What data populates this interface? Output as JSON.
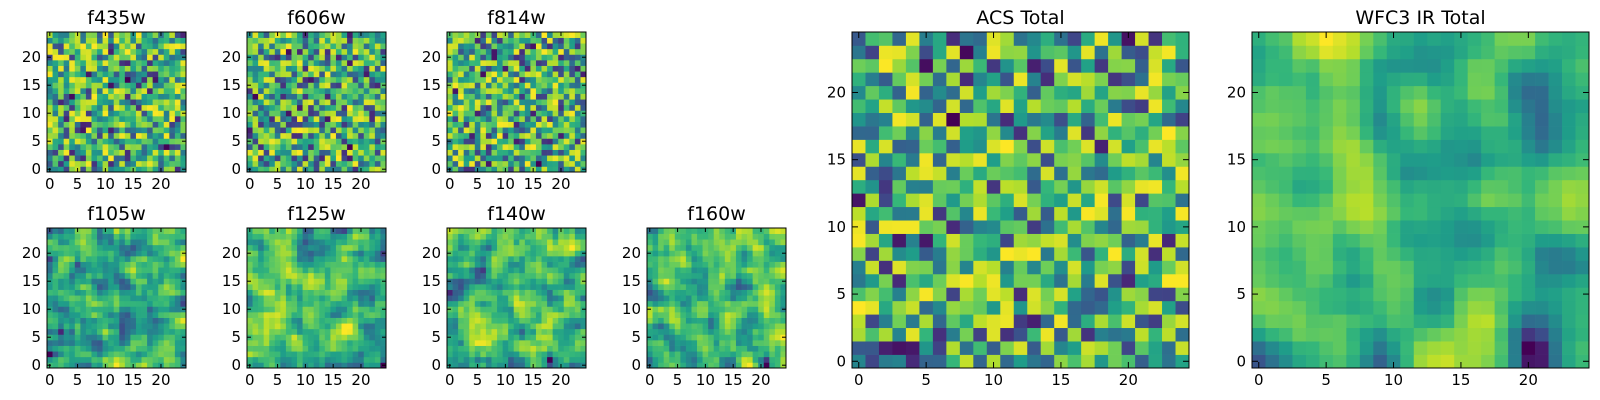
{
  "chart_data": [
    {
      "type": "heatmap",
      "title": "f435w",
      "grid_size": 25,
      "seed": 11,
      "smooth": 0,
      "xticks": [
        "0",
        "5",
        "10",
        "15",
        "20"
      ],
      "yticks": [
        "0",
        "5",
        "10",
        "15",
        "20"
      ],
      "xlim": [
        0,
        25
      ],
      "ylim": [
        0,
        25
      ],
      "colormap": "viridis"
    },
    {
      "type": "heatmap",
      "title": "f606w",
      "grid_size": 25,
      "seed": 23,
      "smooth": 0,
      "xticks": [
        "0",
        "5",
        "10",
        "15",
        "20"
      ],
      "yticks": [
        "0",
        "5",
        "10",
        "15",
        "20"
      ],
      "xlim": [
        0,
        25
      ],
      "ylim": [
        0,
        25
      ],
      "colormap": "viridis"
    },
    {
      "type": "heatmap",
      "title": "f814w",
      "grid_size": 25,
      "seed": 37,
      "smooth": 0,
      "xticks": [
        "0",
        "5",
        "10",
        "15",
        "20"
      ],
      "yticks": [
        "0",
        "5",
        "10",
        "15",
        "20"
      ],
      "xlim": [
        0,
        25
      ],
      "ylim": [
        0,
        25
      ],
      "colormap": "viridis"
    },
    {
      "type": "heatmap",
      "title": "f105w",
      "grid_size": 25,
      "seed": 41,
      "smooth": 1,
      "xticks": [
        "0",
        "5",
        "10",
        "15",
        "20"
      ],
      "yticks": [
        "0",
        "5",
        "10",
        "15",
        "20"
      ],
      "xlim": [
        0,
        25
      ],
      "ylim": [
        0,
        25
      ],
      "colormap": "viridis"
    },
    {
      "type": "heatmap",
      "title": "f125w",
      "grid_size": 25,
      "seed": 53,
      "smooth": 1,
      "xticks": [
        "0",
        "5",
        "10",
        "15",
        "20"
      ],
      "yticks": [
        "0",
        "5",
        "10",
        "15",
        "20"
      ],
      "xlim": [
        0,
        25
      ],
      "ylim": [
        0,
        25
      ],
      "colormap": "viridis"
    },
    {
      "type": "heatmap",
      "title": "f140w",
      "grid_size": 25,
      "seed": 67,
      "smooth": 1,
      "xticks": [
        "0",
        "5",
        "10",
        "15",
        "20"
      ],
      "yticks": [
        "0",
        "5",
        "10",
        "15",
        "20"
      ],
      "xlim": [
        0,
        25
      ],
      "ylim": [
        0,
        25
      ],
      "colormap": "viridis"
    },
    {
      "type": "heatmap",
      "title": "f160w",
      "grid_size": 25,
      "seed": 79,
      "smooth": 1,
      "xticks": [
        "0",
        "5",
        "10",
        "15",
        "20"
      ],
      "yticks": [
        "0",
        "5",
        "10",
        "15",
        "20"
      ],
      "xlim": [
        0,
        25
      ],
      "ylim": [
        0,
        25
      ],
      "colormap": "viridis"
    },
    {
      "type": "heatmap",
      "title": "ACS Total",
      "grid_size": 25,
      "seed": 97,
      "smooth": 0,
      "xticks": [
        "0",
        "5",
        "10",
        "15",
        "20"
      ],
      "yticks": [
        "0",
        "5",
        "10",
        "15",
        "20"
      ],
      "xlim": [
        0,
        25
      ],
      "ylim": [
        0,
        25
      ],
      "colormap": "viridis"
    },
    {
      "type": "heatmap",
      "title": "WFC3 IR Total",
      "grid_size": 25,
      "seed": 131,
      "smooth": 2,
      "xticks": [
        "0",
        "5",
        "10",
        "15",
        "20"
      ],
      "yticks": [
        "0",
        "5",
        "10",
        "15",
        "20"
      ],
      "xlim": [
        0,
        25
      ],
      "ylim": [
        0,
        25
      ],
      "colormap": "viridis"
    }
  ]
}
